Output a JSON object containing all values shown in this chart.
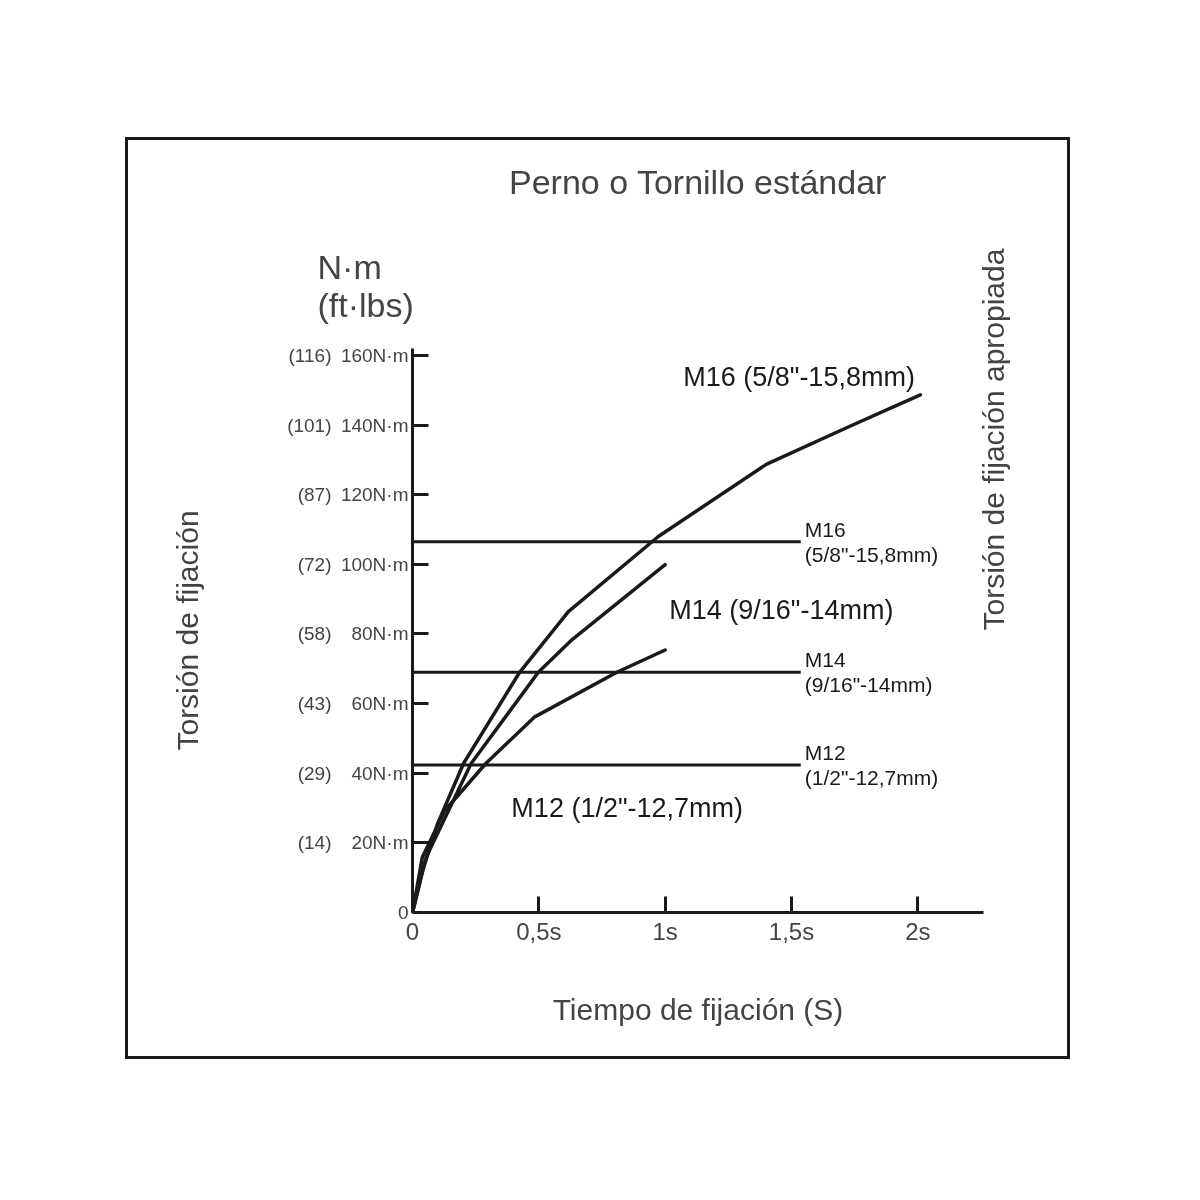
{
  "chart_data": {
    "type": "line",
    "title": "Perno o Tornillo estándar",
    "xlabel": "Tiempo de fijación (S)",
    "ylabel": "Torsión de fijación",
    "annotations": [
      "N·m\n(ft·lbs)",
      "M16 (5/8\"-15,8mm)",
      "M14 (9/16\"-14mm)",
      "M12 (1/2\"-12,7mm)",
      "Torsión de fijación apropiada",
      "(14)",
      "(29)",
      "(43)",
      "(58)",
      "(72)",
      "(87)",
      "(101)",
      "(116)"
    ],
    "series": [
      {
        "color": "#1a1a1a",
        "x": [
          0,
          0.039,
          0.098,
          0.202,
          0.424,
          0.617,
          0.973,
          1.402,
          1.729,
          2.01
        ],
        "values": [
          0,
          11.8,
          25.3,
          42.8,
          69,
          86.4,
          108,
          128.8,
          139.6,
          148.7
        ]
      },
      {
        "color": "#1a1a1a",
        "x": [
          0,
          0.054,
          0.232,
          0.498,
          0.632,
          1.0
        ],
        "values": [
          0,
          15.9,
          42.8,
          69,
          78.4,
          99.9
        ]
      },
      {
        "color": "#1a1a1a",
        "x": [
          0,
          0.039,
          0.128,
          0.29,
          0.484,
          0.809,
          1.0
        ],
        "values": [
          0,
          15.9,
          29.3,
          42.8,
          56.2,
          69,
          75.4
        ]
      }
    ],
    "ref_lines": [
      {
        "axis": "y",
        "value": 106.5,
        "label": "M16\n(5/8\"-15,8mm)",
        "color": "#1a1a1a"
      },
      {
        "axis": "y",
        "value": 69,
        "label": "M14\n(9/16\"-14mm)",
        "color": "#1a1a1a"
      },
      {
        "axis": "y",
        "value": 42.4,
        "label": "M12\n(1/2\"-12,7mm)",
        "color": "#1a1a1a"
      }
    ],
    "xlim": [
      0,
      2.26
    ],
    "ylim": [
      0,
      162
    ],
    "xticks": [
      0,
      {
        "value": 0.5,
        "label": "0,5s"
      },
      {
        "value": 1,
        "label": "1s"
      },
      {
        "value": 1.5,
        "label": "1,5s"
      },
      {
        "value": 2,
        "label": "2s"
      }
    ],
    "yticks": [
      0,
      {
        "value": 20,
        "label": "20N·m"
      },
      {
        "value": 40,
        "label": "40N·m"
      },
      {
        "value": 60,
        "label": "60N·m"
      },
      {
        "value": 80,
        "label": "80N·m"
      },
      {
        "value": 100,
        "label": "100N·m"
      },
      {
        "value": 120,
        "label": "120N·m"
      },
      {
        "value": 140,
        "label": "140N·m"
      },
      {
        "value": 160,
        "label": "160N·m"
      }
    ],
    "grid": false,
    "marker": "none",
    "line_style": "solid"
  }
}
